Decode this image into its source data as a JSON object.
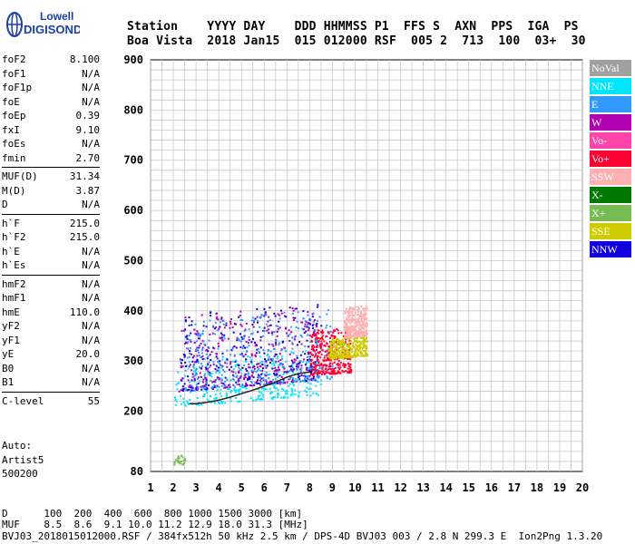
{
  "logo": {
    "line1": "Lowell",
    "line2": "DIGISONDE"
  },
  "header": {
    "line1": "Station    YYYY DAY    DDD HHMMSS P1  FFS S  AXN  PPS  IGA  PS",
    "line2": "Boa Vista  2018 Jan15  015 012000 RSF  005 2  713  100  03+  30"
  },
  "params": [
    {
      "label": "foF2",
      "value": "8.100"
    },
    {
      "label": "foF1",
      "value": "N/A"
    },
    {
      "label": "foF1p",
      "value": "N/A"
    },
    {
      "label": "foE",
      "value": "N/A"
    },
    {
      "label": "foEp",
      "value": "0.39"
    },
    {
      "label": "fxI",
      "value": "9.10"
    },
    {
      "label": "foEs",
      "value": "N/A"
    },
    {
      "label": "fmin",
      "value": "2.70"
    },
    {
      "label": "MUF(D)",
      "value": "31.34"
    },
    {
      "label": "M(D)",
      "value": "3.87"
    },
    {
      "label": "D",
      "value": "N/A"
    },
    {
      "label": "h`F",
      "value": "215.0"
    },
    {
      "label": "h`F2",
      "value": "215.0"
    },
    {
      "label": "h`E",
      "value": "N/A"
    },
    {
      "label": "h`Es",
      "value": "N/A"
    },
    {
      "label": "hmF2",
      "value": "N/A"
    },
    {
      "label": "hmF1",
      "value": "N/A"
    },
    {
      "label": "hmE",
      "value": "110.0"
    },
    {
      "label": "yF2",
      "value": "N/A"
    },
    {
      "label": "yF1",
      "value": "N/A"
    },
    {
      "label": "yE",
      "value": "20.0"
    },
    {
      "label": "B0",
      "value": "N/A"
    },
    {
      "label": "B1",
      "value": "N/A"
    },
    {
      "label": "C-level",
      "value": "55"
    }
  ],
  "auto": {
    "line1": "Auto:",
    "line2": "Artist5",
    "line3": "500200"
  },
  "legend": [
    {
      "label": "NoVal",
      "color": "#a0a0a0"
    },
    {
      "label": "NNE",
      "color": "#00e5ff"
    },
    {
      "label": "E",
      "color": "#3399ff"
    },
    {
      "label": "W",
      "color": "#b000b0"
    },
    {
      "label": "Vo-",
      "color": "#ff44aa"
    },
    {
      "label": "Vo+",
      "color": "#ff0033"
    },
    {
      "label": "SSW",
      "color": "#ffb0b0"
    },
    {
      "label": "X-",
      "color": "#007700"
    },
    {
      "label": "X+",
      "color": "#77bb55"
    },
    {
      "label": "SSE",
      "color": "#cccc00"
    },
    {
      "label": "NNW",
      "color": "#1100dd"
    }
  ],
  "footer": {
    "line1": "D      100  200  400  600  800 1000 1500 3000 [km]",
    "line2": "MUF    8.5  8.6  9.1 10.0 11.2 12.9 18.0 31.3 [MHz]",
    "line3": "BVJ03_2018015012000.RSF / 384fx512h 50 kHz 2.5 km / DPS-4D BVJ03 003 / 2.8 N 299.3 E  Ion2Png 1.3.20"
  },
  "chart_data": {
    "type": "scatter",
    "x_ticks": [
      1,
      2,
      3,
      4,
      5,
      6,
      7,
      8,
      9,
      10,
      11,
      12,
      13,
      14,
      15,
      16,
      17,
      18,
      19,
      20
    ],
    "y_ticks": [
      80,
      200,
      300,
      400,
      500,
      600,
      700,
      800,
      900
    ],
    "xlim": [
      1,
      20
    ],
    "ylim": [
      80,
      900
    ],
    "grid": true,
    "legend_position": "right",
    "trace": {
      "x": [
        2.7,
        3.0,
        3.5,
        4.0,
        4.5,
        5.0,
        5.5,
        6.0,
        6.5,
        7.0,
        7.5,
        8.0,
        8.1
      ],
      "y": [
        215,
        215,
        218,
        222,
        228,
        235,
        242,
        250,
        258,
        268,
        275,
        278,
        280
      ]
    },
    "clusters": [
      {
        "name": "NNE",
        "xmin": 2.0,
        "xmax": 8.5,
        "ymin": 210,
        "ymax": 300
      },
      {
        "name": "NNW",
        "xmin": 2.3,
        "xmax": 8.5,
        "ymin": 240,
        "ymax": 400
      },
      {
        "name": "W",
        "xmin": 2.2,
        "xmax": 8.3,
        "ymin": 240,
        "ymax": 390
      },
      {
        "name": "E",
        "xmin": 2.5,
        "xmax": 9.0,
        "ymin": 240,
        "ymax": 380
      },
      {
        "name": "Vo+",
        "xmin": 8.0,
        "xmax": 9.8,
        "ymin": 250,
        "ymax": 340
      },
      {
        "name": "SSE",
        "xmin": 8.8,
        "xmax": 10.5,
        "ymin": 280,
        "ymax": 320
      },
      {
        "name": "SSW",
        "xmin": 9.5,
        "xmax": 10.5,
        "ymin": 320,
        "ymax": 380
      },
      {
        "name": "X+",
        "xmin": 2.0,
        "xmax": 2.5,
        "ymin": 95,
        "ymax": 115
      }
    ]
  }
}
